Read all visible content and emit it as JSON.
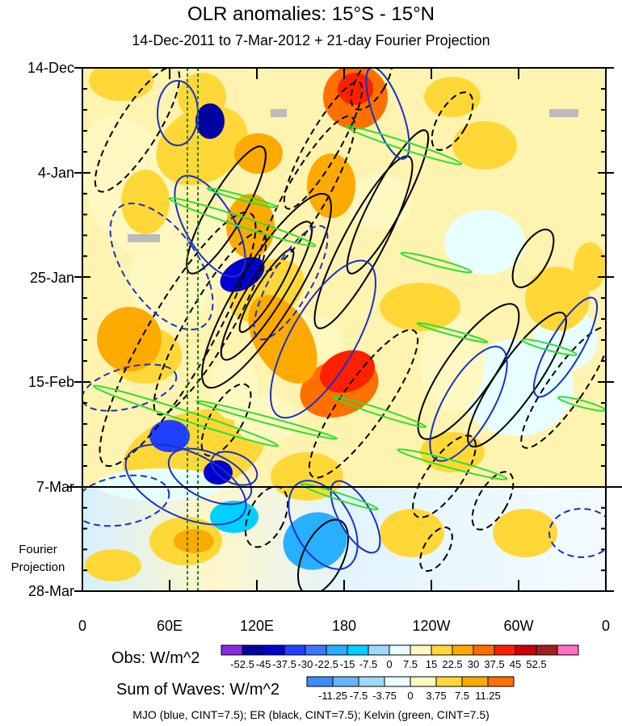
{
  "chart_data": {
    "type": "heatmap",
    "title": "OLR anomalies: 15°S - 15°N",
    "subtitle": "14-Dec-2011 to 7-Mar-2012 + 21-day Fourier Projection",
    "x_ticks": [
      "0",
      "60E",
      "120E",
      "180",
      "120W",
      "60W",
      "0"
    ],
    "y_ticks": [
      "14-Dec",
      "4-Jan",
      "25-Jan",
      "15-Feb",
      "7-Mar",
      "28-Mar"
    ],
    "y_annotation": [
      "Fourier",
      "Projection"
    ],
    "obs_colorbar": {
      "title": "Obs: W/m^2",
      "labels": [
        "-52.5",
        "-45",
        "-37.5",
        "-30",
        "-22.5",
        "-15",
        "-7.5",
        "0",
        "7.5",
        "15",
        "22.5",
        "30",
        "37.5",
        "45",
        "52.5"
      ],
      "colors": [
        "#8a2be2",
        "#0000a0",
        "#0000d0",
        "#2040ff",
        "#3c78ff",
        "#28b0ff",
        "#00d0ff",
        "#a0d8ff",
        "#e8ffff",
        "#fff8c0",
        "#ffd838",
        "#ffaa00",
        "#ff7000",
        "#ff2000",
        "#cc0000",
        "#a02020",
        "#ff70c0"
      ]
    },
    "waves_colorbar": {
      "title": "Sum of Waves: W/m^2",
      "labels": [
        "-11.25",
        "-7.5",
        "-3.75",
        "0",
        "3.75",
        "7.5",
        "11.25"
      ],
      "colors": [
        "#3c8cff",
        "#64b4ff",
        "#a0d8ff",
        "#e8ffff",
        "#fff8c0",
        "#ffd838",
        "#ffaa00",
        "#ff7000"
      ]
    },
    "caption": "MJO (blue, CINT=7.5); ER (black, CINT=7.5); Kelvin (green, CINT=7.5)"
  }
}
